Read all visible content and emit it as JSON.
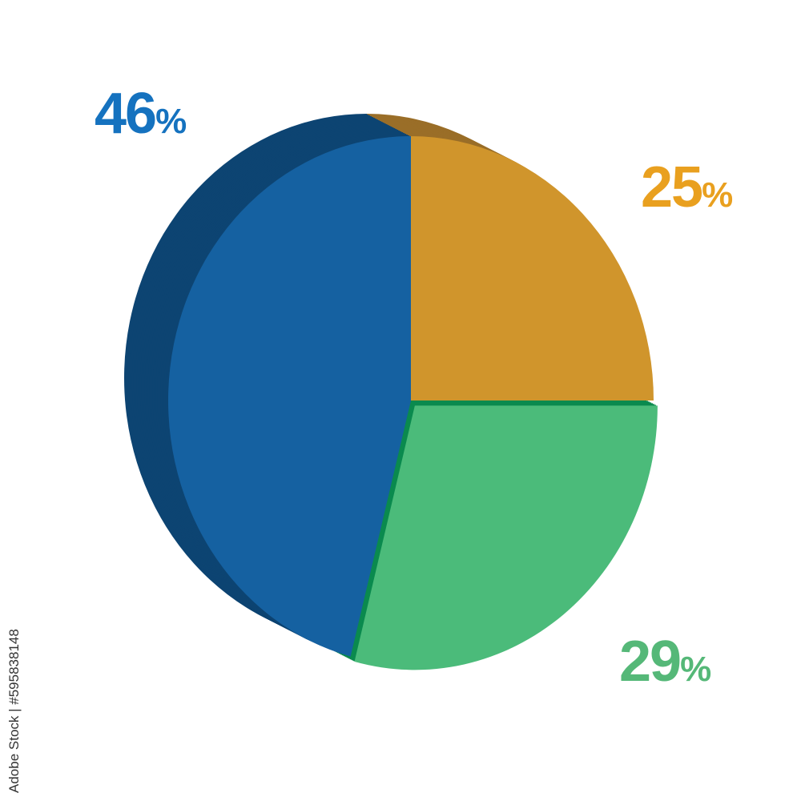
{
  "chart_data": {
    "type": "pie",
    "style": "3d",
    "start": "top",
    "direction": "clockwise",
    "slices": [
      {
        "value": 25,
        "label": "25",
        "unit": "%",
        "color": "#d0952c",
        "side_color": "#9a6e28",
        "label_color": "#e9a01f"
      },
      {
        "value": 29,
        "label": "29",
        "unit": "%",
        "color": "#4bbb7a",
        "side_color": "#0a8a4e",
        "label_color": "#55b878",
        "exploded": true
      },
      {
        "value": 46,
        "label": "46",
        "unit": "%",
        "color": "#1561a1",
        "side_color": "#0d4472",
        "label_color": "#1572bf"
      }
    ]
  },
  "credit": "Adobe Stock | #595838148"
}
